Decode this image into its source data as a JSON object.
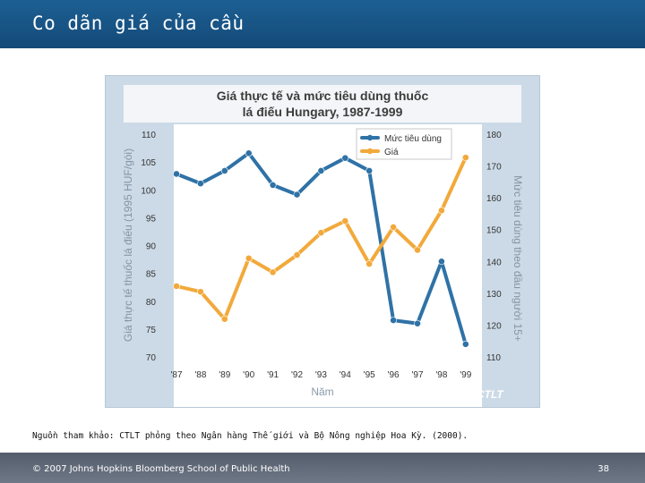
{
  "slide": {
    "title": "Co dãn giá của cầu",
    "source": "Nguồn tham khảo: CTLT phỏng theo Ngân hàng Thế giới và Bộ Nông nghiệp Hoa Kỳ. (2000).",
    "copyright": "© 2007 Johns Hopkins Bloomberg School of Public Health",
    "page_number": "38",
    "brand": "CTLT",
    "brand_icon": "ctlt-logo-icon",
    "colors": {
      "header": "#1a5a8c",
      "footer": "#5f6876",
      "consumption_line": "#2f72a6",
      "price_line": "#f2a93b",
      "panel": "#ccdae7"
    }
  },
  "chart_data": {
    "type": "line",
    "title_line1": "Giá thực tế và mức tiêu dùng thuốc",
    "title_line2": "lá điếu Hungary, 1987-1999",
    "xlabel": "Năm",
    "ylabel_left": "Giá thực tế thuốc lá điếu (1995 HUF/gói)",
    "ylabel_right": "Mức tiêu dùng theo đầu người 15+",
    "categories": [
      "'87",
      "'88",
      "'89",
      "'90",
      "'91",
      "'92",
      "'93",
      "'94",
      "'95",
      "'96",
      "'97",
      "'98",
      "'99"
    ],
    "left_axis": {
      "min": 70,
      "max": 110,
      "ticks": [
        110,
        105,
        100,
        95,
        90,
        85,
        80,
        75,
        70
      ]
    },
    "right_axis": {
      "min": 110,
      "max": 180,
      "ticks": [
        180,
        170,
        160,
        150,
        140,
        130,
        120,
        110
      ]
    },
    "legend": {
      "position": "top-right",
      "entries": [
        "Mức tiêu dùng",
        "Giá"
      ]
    },
    "series": [
      {
        "name": "Mức tiêu dùng",
        "axis": "right",
        "values": [
          167.5,
          164.5,
          168.5,
          174,
          164,
          161,
          168.5,
          172.5,
          168.5,
          121.5,
          120.5,
          140,
          114
        ]
      },
      {
        "name": "Giá",
        "axis": "left",
        "values": [
          82.7,
          81.7,
          76.8,
          87.7,
          85.2,
          88.3,
          92.3,
          94.4,
          86.7,
          93.3,
          89.2,
          96.3,
          105.8
        ]
      }
    ]
  }
}
